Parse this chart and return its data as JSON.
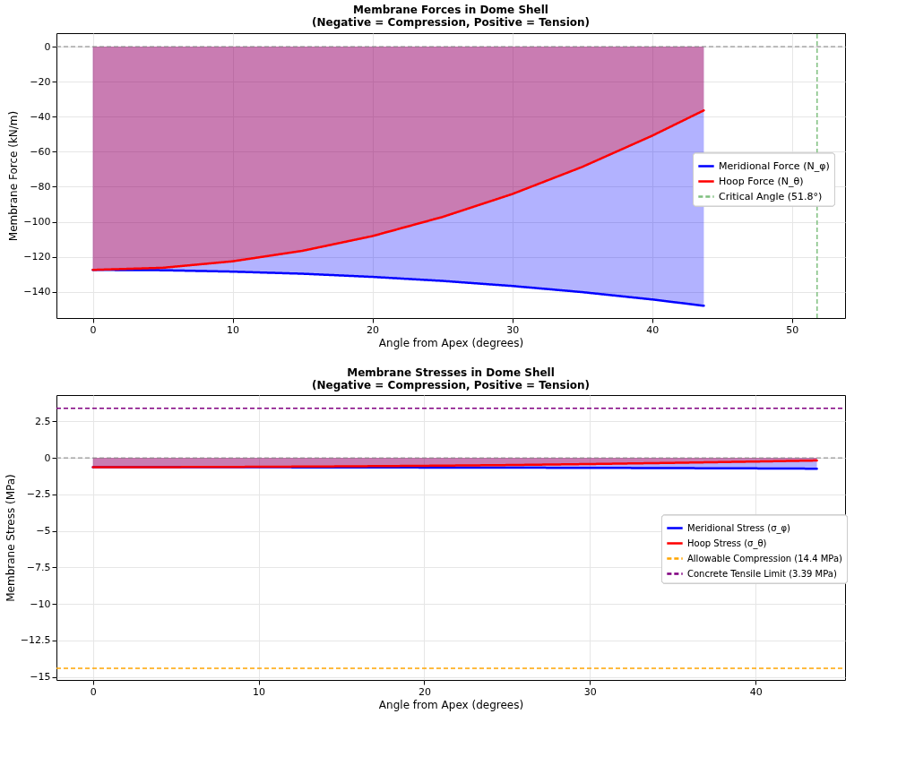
{
  "chart_data": [
    {
      "type": "area",
      "title": "Membrane Forces in Dome Shell",
      "subtitle": "(Negative = Compression, Positive = Tension)",
      "xlabel": "Angle from Apex (degrees)",
      "ylabel": "Membrane Force (kN/m)",
      "x": [
        0,
        5,
        10,
        15,
        20,
        25,
        30,
        35,
        40,
        43.7
      ],
      "series": [
        {
          "name": "Meridional Force (N_φ)",
          "color": "#0000ff",
          "values": [
            -127.5,
            -127.7,
            -128.5,
            -129.7,
            -131.5,
            -133.8,
            -136.7,
            -140.2,
            -144.4,
            -148.0
          ]
        },
        {
          "name": "Hoop Force (N_θ)",
          "color": "#ff0000",
          "values": [
            -127.5,
            -126.3,
            -122.6,
            -116.6,
            -108.2,
            -97.3,
            -84.2,
            -68.7,
            -50.9,
            -36.4
          ]
        }
      ],
      "ref_lines": [
        {
          "axis": "y",
          "value": 0,
          "color": "#808080",
          "line_style": "dashed"
        },
        {
          "axis": "x",
          "value": 51.8,
          "label": "Critical Angle (51.8°)",
          "color": "#80c080",
          "line_style": "dashed"
        }
      ],
      "xlim": [
        -2.6,
        53.8
      ],
      "xticks": [
        0,
        10,
        20,
        30,
        40,
        50
      ],
      "ylim": [
        -155,
        7.7
      ],
      "yticks": [
        -140,
        -120,
        -100,
        -80,
        -60,
        -40,
        -20,
        0
      ],
      "grid": true,
      "legend": "right"
    },
    {
      "type": "area",
      "title": "Membrane Stresses in Dome Shell",
      "subtitle": "(Negative = Compression, Positive = Tension)",
      "xlabel": "Angle from Apex (degrees)",
      "ylabel": "Membrane Stress (MPa)",
      "x": [
        0,
        5,
        10,
        15,
        20,
        25,
        30,
        35,
        40,
        43.7
      ],
      "series": [
        {
          "name": "Meridional Stress (σ_φ)",
          "color": "#0000ff",
          "values": [
            -0.64,
            -0.64,
            -0.64,
            -0.65,
            -0.66,
            -0.67,
            -0.68,
            -0.7,
            -0.72,
            -0.74
          ]
        },
        {
          "name": "Hoop Stress (σ_θ)",
          "color": "#ff0000",
          "values": [
            -0.64,
            -0.63,
            -0.61,
            -0.58,
            -0.54,
            -0.49,
            -0.42,
            -0.34,
            -0.25,
            -0.18
          ]
        }
      ],
      "ref_lines": [
        {
          "axis": "y",
          "value": 0,
          "color": "#808080",
          "line_style": "dashed"
        },
        {
          "axis": "y",
          "value": -14.4,
          "label": "Allowable Compression (14.4 MPa)",
          "color": "#ffa500",
          "line_style": "dashed"
        },
        {
          "axis": "y",
          "value": 3.39,
          "label": "Concrete Tensile Limit (3.39 MPa)",
          "color": "#800080",
          "line_style": "dashed"
        }
      ],
      "xlim": [
        -2.2,
        45.4
      ],
      "xticks": [
        0,
        10,
        20,
        30,
        40
      ],
      "ylim": [
        -15.2,
        4.3
      ],
      "yticks": [
        -15,
        -12.5,
        -10,
        -7.5,
        -5,
        -2.5,
        0,
        2.5
      ],
      "grid": true,
      "legend": "right"
    }
  ]
}
